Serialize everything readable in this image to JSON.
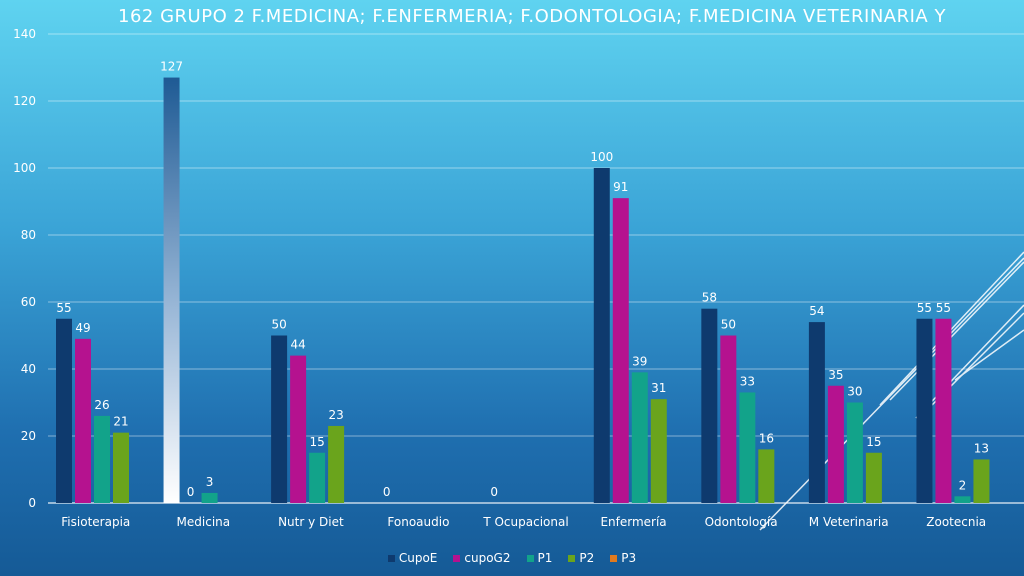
{
  "title": "162  GRUPO 2  F.MEDICINA;  F.ENFERMERIA;  F.ODONTOLOGIA;  F.MEDICINA VETERINARIA Y",
  "chart_data": {
    "type": "bar",
    "title": "162  GRUPO 2  F.MEDICINA;  F.ENFERMERIA;  F.ODONTOLOGIA;  F.MEDICINA VETERINARIA Y",
    "categories": [
      "Fisioterapia",
      "Medicina",
      "Nutr y Diet",
      "Fonoaudio",
      "T Ocupacional",
      "Enfermería",
      "Odontología",
      "M Veterinaria",
      "Zootecnia"
    ],
    "ylim": [
      0,
      140
    ],
    "yticks": [
      0,
      20,
      40,
      60,
      80,
      100,
      120,
      140
    ],
    "grid": true,
    "legend_position": "bottom",
    "series": [
      {
        "name": "CupoE",
        "color": "#0e3a6e",
        "values": [
          55,
          127,
          50,
          0,
          0,
          100,
          58,
          54,
          55
        ]
      },
      {
        "name": "cupoG2",
        "color": "#b5128f",
        "values": [
          49,
          0,
          44,
          null,
          null,
          91,
          50,
          35,
          55
        ]
      },
      {
        "name": "P1",
        "color": "#12a38a",
        "values": [
          26,
          3,
          15,
          null,
          null,
          39,
          33,
          30,
          2
        ]
      },
      {
        "name": "P2",
        "color": "#6aa41c",
        "values": [
          21,
          null,
          23,
          null,
          null,
          31,
          16,
          15,
          13
        ]
      },
      {
        "name": "P3",
        "color": "#e07a1f",
        "values": [
          null,
          null,
          null,
          null,
          null,
          null,
          null,
          null,
          null
        ]
      }
    ],
    "data_labels": [
      [
        "55",
        "49",
        "26",
        "21",
        ""
      ],
      [
        "127",
        "0",
        "3",
        "",
        ""
      ],
      [
        "50",
        "44",
        "15",
        "23",
        ""
      ],
      [
        "0",
        "",
        "",
        "",
        ""
      ],
      [
        "0",
        "",
        "",
        "",
        ""
      ],
      [
        "100",
        "91",
        "39",
        "31",
        ""
      ],
      [
        "58",
        "50",
        "33",
        "16",
        ""
      ],
      [
        "54",
        "35",
        "30",
        "15",
        ""
      ],
      [
        "55",
        "55",
        "2",
        "13",
        ""
      ]
    ]
  }
}
